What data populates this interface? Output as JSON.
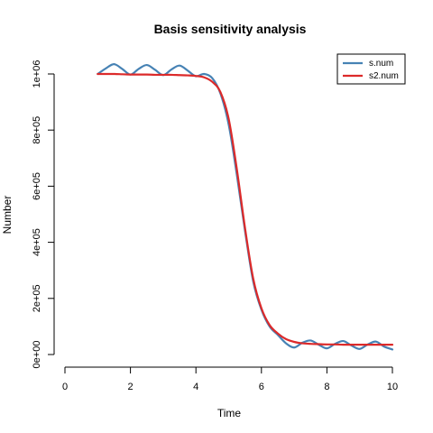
{
  "chart_data": {
    "type": "line",
    "title": "Basis sensitivity analysis",
    "xlabel": "Time",
    "ylabel": "Number",
    "xlim": [
      0,
      10
    ],
    "ylim": [
      0,
      1000000
    ],
    "x_ticks": [
      0,
      2,
      4,
      6,
      8,
      10
    ],
    "x_tick_labels": [
      "0",
      "2",
      "4",
      "6",
      "8",
      "10"
    ],
    "y_ticks": [
      0,
      200000,
      400000,
      600000,
      800000,
      1000000
    ],
    "y_tick_labels": [
      "0e+00",
      "2e+05",
      "4e+05",
      "6e+05",
      "8e+05",
      "1e+06"
    ],
    "grid": false,
    "legend_position": "top-right",
    "x": [
      1.0,
      1.25,
      1.5,
      1.75,
      2.0,
      2.25,
      2.5,
      2.75,
      3.0,
      3.25,
      3.5,
      3.75,
      4.0,
      4.25,
      4.5,
      4.75,
      5.0,
      5.25,
      5.5,
      5.75,
      6.0,
      6.25,
      6.5,
      6.75,
      7.0,
      7.25,
      7.5,
      7.75,
      8.0,
      8.25,
      8.5,
      8.75,
      9.0,
      9.25,
      9.5,
      9.75,
      10.0
    ],
    "series": [
      {
        "name": "s.num",
        "color": "#4682b4",
        "values": [
          1000000,
          1020000,
          1035000,
          1018000,
          998000,
          1018000,
          1032000,
          1015000,
          996000,
          1016000,
          1030000,
          1012000,
          992000,
          1000000,
          985000,
          930000,
          820000,
          640000,
          440000,
          260000,
          160000,
          100000,
          70000,
          40000,
          25000,
          42000,
          50000,
          35000,
          22000,
          38000,
          48000,
          32000,
          20000,
          36000,
          46000,
          28000,
          18000
        ]
      },
      {
        "name": "s2.num",
        "color": "#dc2a2a",
        "values": [
          1000000,
          1000000,
          1000000,
          999000,
          998000,
          998000,
          998000,
          997000,
          997000,
          997000,
          996000,
          995000,
          993000,
          988000,
          972000,
          935000,
          840000,
          660000,
          450000,
          270000,
          165000,
          105000,
          75000,
          55000,
          45000,
          40000,
          38000,
          37000,
          36000,
          36000,
          35000,
          35000,
          35000,
          35000,
          35000,
          35000,
          35000
        ]
      }
    ]
  }
}
